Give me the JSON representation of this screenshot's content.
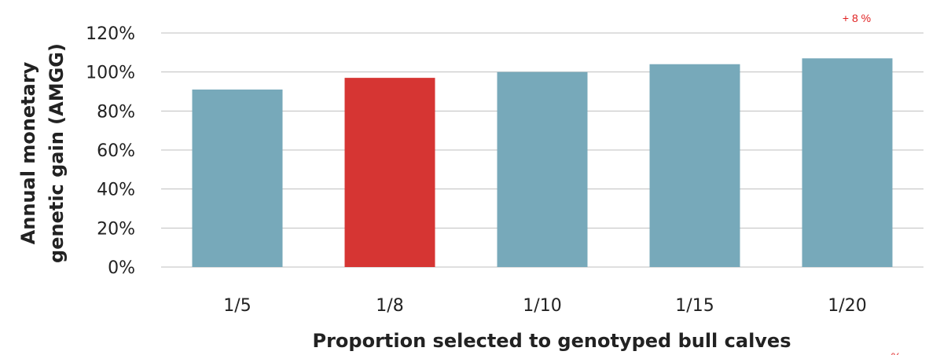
{
  "chart_data": {
    "type": "bar",
    "categories": [
      "1/5",
      "1/8",
      "1/10",
      "1/15",
      "1/20"
    ],
    "values": [
      91,
      97,
      100,
      104,
      107
    ],
    "highlight_index": 1,
    "colors": {
      "bar": "#77a9ba",
      "highlight": "#d63533",
      "grid": "#bfbfbf",
      "annotation": "#e02020"
    },
    "xlabel": "Proportion selected to genotyped bull calves",
    "ylabel": [
      "Annual monetary",
      "genetic gain (AMGG)"
    ],
    "ylim": [
      0,
      120
    ],
    "yticks": [
      "0%",
      "20%",
      "40%",
      "60%",
      "80%",
      "100%",
      "120%"
    ],
    "grid": true,
    "annotations": {
      "top": "+ 8 %",
      "bottom": "%"
    }
  }
}
